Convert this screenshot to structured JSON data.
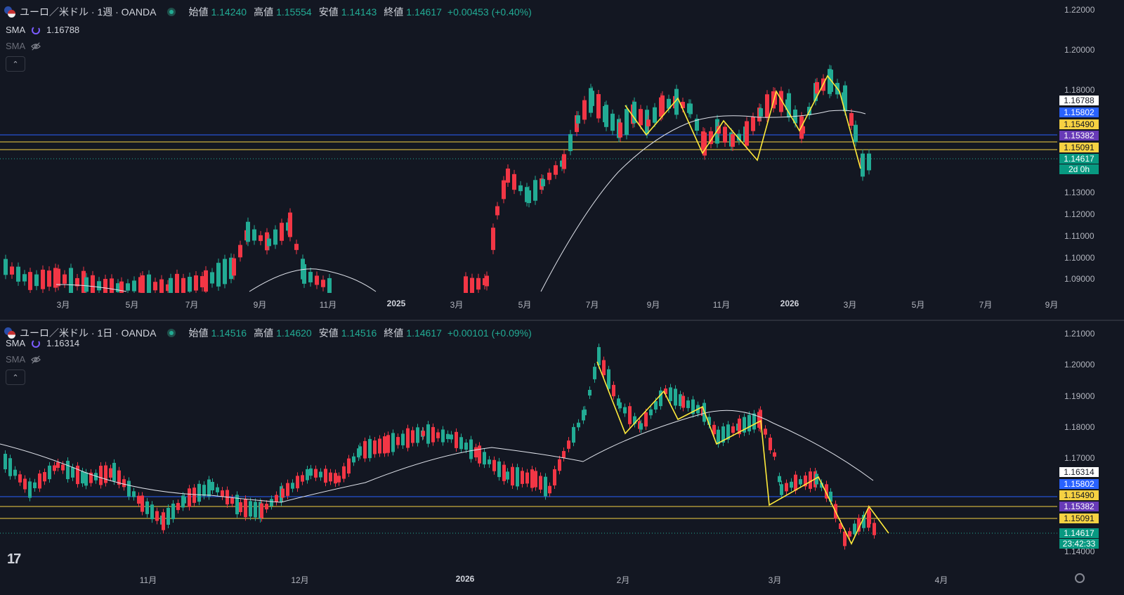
{
  "top": {
    "title": "ユーロ／米ドル · 1週 · OANDA",
    "ohlc": {
      "o_label": "始値",
      "o": "1.14240",
      "h_label": "高値",
      "h": "1.15554",
      "l_label": "安値",
      "l": "1.14143",
      "c_label": "終値",
      "c": "1.14617",
      "change": "+0.00453 (+0.40%)"
    },
    "sma1": {
      "name": "SMA",
      "value": "1.16788"
    },
    "sma2": {
      "name": "SMA"
    },
    "collapse": "⌃",
    "price_axis": [
      "1.22000",
      "1.20000",
      "1.18000",
      "1.13000",
      "1.12000",
      "1.11000",
      "1.10000",
      "1.09000"
    ],
    "tags": {
      "sma": "1.16788",
      "l1": "1.15802",
      "l2": "1.15490",
      "l3": "1.15382",
      "l4": "1.15091",
      "last": "1.14617",
      "countdown": "2d 0h"
    },
    "time_axis": [
      "3月",
      "5月",
      "7月",
      "9月",
      "11月",
      "2025",
      "3月",
      "5月",
      "7月",
      "9月",
      "11月",
      "2026",
      "3月",
      "5月",
      "7月",
      "9月"
    ]
  },
  "bottom": {
    "title": "ユーロ／米ドル · 1日 · OANDA",
    "ohlc": {
      "o_label": "始値",
      "o": "1.14516",
      "h_label": "高値",
      "h": "1.14620",
      "l_label": "安値",
      "l": "1.14516",
      "c_label": "終値",
      "c": "1.14617",
      "change": "+0.00101 (+0.09%)"
    },
    "sma1": {
      "name": "SMA",
      "value": "1.16314"
    },
    "sma2": {
      "name": "SMA"
    },
    "collapse": "⌃",
    "price_axis": [
      "1.21000",
      "1.20000",
      "1.19000",
      "1.18000",
      "1.17000",
      "1.14000"
    ],
    "tags": {
      "sma": "1.16314",
      "l1": "1.15802",
      "l2": "1.15490",
      "l3": "1.15382",
      "l4": "1.15091",
      "last": "1.14617",
      "countdown": "23:42:33"
    },
    "time_axis": [
      "11月",
      "12月",
      "2026",
      "2月",
      "3月",
      "4月"
    ],
    "logo": "17"
  },
  "colors": {
    "bg": "#131722",
    "up": "#22ab94",
    "down": "#f23645",
    "zigzag": "#ffeb3b",
    "sma": "#e0e3eb",
    "blue_line": "#2962ff",
    "yellow_line": "#f5d142",
    "purple_tag": "#673ab7"
  }
}
